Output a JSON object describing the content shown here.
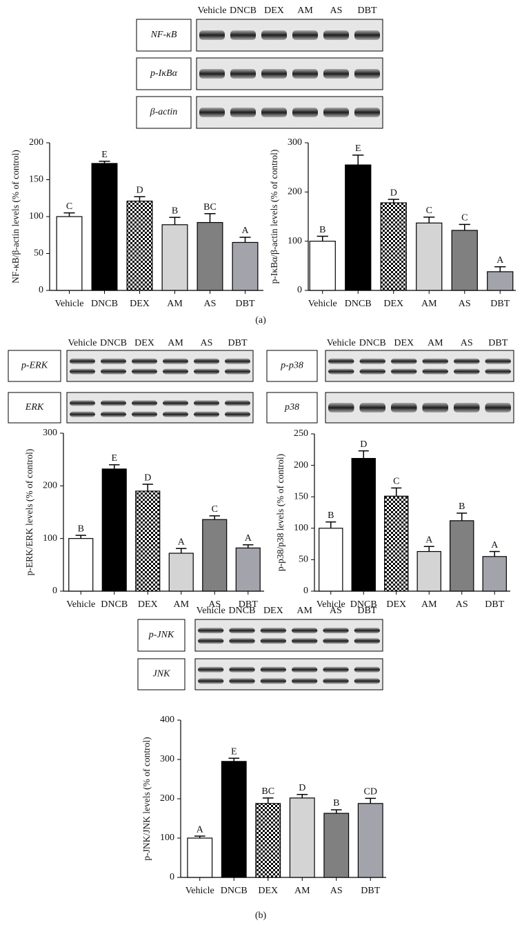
{
  "chart_data": [
    {
      "type": "bar",
      "ylabel": "NF-κB/β-actin levels (% of control)",
      "categories": [
        "Vehicle",
        "DNCB",
        "DEX",
        "AM",
        "AS",
        "DBT"
      ],
      "values": [
        100,
        172,
        121,
        89,
        92,
        65
      ],
      "errors": [
        5,
        3,
        6,
        10,
        12,
        7
      ],
      "annotations": [
        "C",
        "E",
        "D",
        "B",
        "BC",
        "A"
      ],
      "colors": [
        "#ffffff",
        "#000000",
        "#ffffff",
        "#d4d4d4",
        "#808080",
        "#a3a3ab"
      ],
      "checkered": [
        false,
        false,
        true,
        false,
        false,
        false
      ],
      "ylim": [
        0,
        200
      ],
      "yticks": [
        0,
        50,
        100,
        150,
        200
      ]
    },
    {
      "type": "bar",
      "ylabel": "p-IκBα/β-actin levels (% of control)",
      "categories": [
        "Vehicle",
        "DNCB",
        "DEX",
        "AM",
        "AS",
        "DBT"
      ],
      "values": [
        100,
        255,
        178,
        137,
        122,
        38
      ],
      "errors": [
        10,
        20,
        7,
        12,
        12,
        10
      ],
      "annotations": [
        "B",
        "E",
        "D",
        "C",
        "C",
        "A"
      ],
      "colors": [
        "#ffffff",
        "#000000",
        "#ffffff",
        "#d4d4d4",
        "#808080",
        "#a3a3ab"
      ],
      "checkered": [
        false,
        false,
        true,
        false,
        false,
        false
      ],
      "ylim": [
        0,
        300
      ],
      "yticks": [
        0,
        100,
        200,
        300
      ]
    },
    {
      "type": "bar",
      "ylabel": "p-ERK/ERK levels (% of control)",
      "categories": [
        "Vehicle",
        "DNCB",
        "DEX",
        "AM",
        "AS",
        "DBT"
      ],
      "values": [
        100,
        232,
        190,
        72,
        136,
        82
      ],
      "errors": [
        6,
        8,
        13,
        9,
        7,
        6
      ],
      "annotations": [
        "B",
        "E",
        "D",
        "A",
        "C",
        "A"
      ],
      "colors": [
        "#ffffff",
        "#000000",
        "#ffffff",
        "#d4d4d4",
        "#808080",
        "#a3a3ab"
      ],
      "checkered": [
        false,
        false,
        true,
        false,
        false,
        false
      ],
      "ylim": [
        0,
        300
      ],
      "yticks": [
        0,
        100,
        200,
        300
      ]
    },
    {
      "type": "bar",
      "ylabel": "p-p38/p38 levels (% of control)",
      "categories": [
        "Vehicle",
        "DNCB",
        "DEX",
        "AM",
        "AS",
        "DBT"
      ],
      "values": [
        100,
        211,
        151,
        63,
        112,
        55
      ],
      "errors": [
        10,
        12,
        13,
        8,
        12,
        8
      ],
      "annotations": [
        "B",
        "D",
        "C",
        "A",
        "B",
        "A"
      ],
      "colors": [
        "#ffffff",
        "#000000",
        "#ffffff",
        "#d4d4d4",
        "#808080",
        "#a3a3ab"
      ],
      "checkered": [
        false,
        false,
        true,
        false,
        false,
        false
      ],
      "ylim": [
        0,
        250
      ],
      "yticks": [
        0,
        50,
        100,
        150,
        200,
        250
      ]
    },
    {
      "type": "bar",
      "ylabel": "p-JNK/JNK levels (% of control)",
      "categories": [
        "Vehicle",
        "DNCB",
        "DEX",
        "AM",
        "AS",
        "DBT"
      ],
      "values": [
        100,
        295,
        188,
        202,
        163,
        188
      ],
      "errors": [
        5,
        8,
        14,
        9,
        9,
        13
      ],
      "annotations": [
        "A",
        "E",
        "BC",
        "D",
        "B",
        "CD"
      ],
      "colors": [
        "#ffffff",
        "#000000",
        "#ffffff",
        "#d4d4d4",
        "#808080",
        "#a3a3ab"
      ],
      "checkered": [
        false,
        false,
        true,
        false,
        false,
        false
      ],
      "ylim": [
        0,
        400
      ],
      "yticks": [
        0,
        100,
        200,
        300,
        400
      ]
    }
  ],
  "blots": [
    {
      "lanes": [
        "Vehicle",
        "DNCB",
        "DEX",
        "AM",
        "AS",
        "DBT"
      ],
      "rows": [
        "NF-κB",
        "p-IκBα",
        "β-actin"
      ]
    },
    {
      "lanes": [
        "Vehicle",
        "DNCB",
        "DEX",
        "AM",
        "AS",
        "DBT"
      ],
      "rows": [
        "p-ERK",
        "ERK"
      ]
    },
    {
      "lanes": [
        "Vehicle",
        "DNCB",
        "DEX",
        "AM",
        "AS",
        "DBT"
      ],
      "rows": [
        "p-p38",
        "p38"
      ]
    },
    {
      "lanes": [
        "Vehicle",
        "DNCB",
        "DEX",
        "AM",
        "AS",
        "DBT"
      ],
      "rows": [
        "p-JNK",
        "JNK"
      ]
    }
  ],
  "panel_labels": [
    "(a)",
    "(b)"
  ]
}
